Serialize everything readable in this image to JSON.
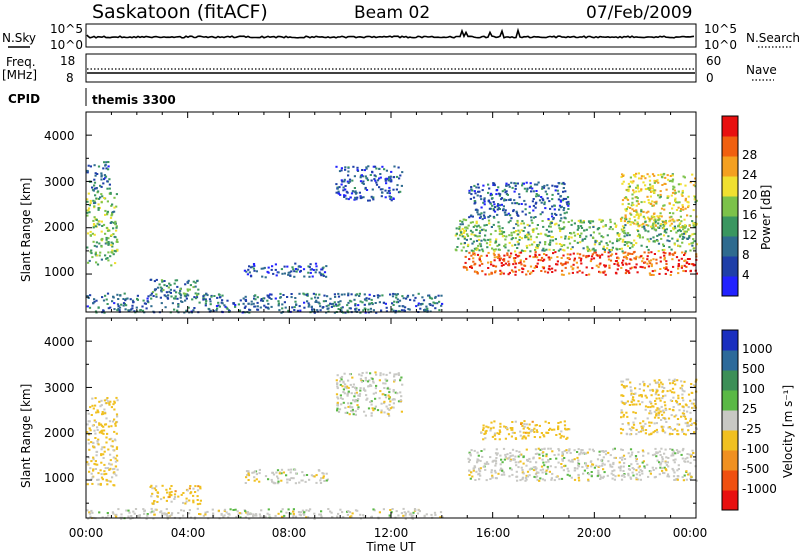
{
  "header": {
    "station": "Saskatoon (fitACF)",
    "beam": "Beam 02",
    "date": "07/Feb/2009"
  },
  "top_panels": {
    "nsky_label": "N.Sky",
    "nsky_ticks": [
      "10^5",
      "10^0"
    ],
    "nsearch_label": "N.Search",
    "nsearch_ticks": [
      "10^5",
      "10^0"
    ],
    "freq_label": "Freq.",
    "freq_unit": "[MHz]",
    "freq_ticks": [
      "18",
      "8"
    ],
    "nave_label": "Nave",
    "nave_ticks": [
      "60",
      "0"
    ],
    "cpid_label": "CPID",
    "cpid_value": "themis 3300"
  },
  "axes": {
    "ylabel": "Slant Range [km]",
    "y_ticks": [
      "1000",
      "2000",
      "3000",
      "4000"
    ],
    "x_ticks": [
      "00:00",
      "04:00",
      "08:00",
      "12:00",
      "16:00",
      "20:00",
      "00:00"
    ],
    "xlabel": "Time UT"
  },
  "colorbars": {
    "power_label": "Power [dB]",
    "power_ticks": [
      "4",
      "8",
      "12",
      "16",
      "20",
      "24",
      "28"
    ],
    "velocity_label": "Velocity [m s⁻¹]",
    "velocity_ticks": [
      "1000",
      "500",
      "100",
      "25",
      "-25",
      "-100",
      "-500",
      "-1000"
    ]
  },
  "colors": {
    "power_scale": [
      "#2222ff",
      "#1f3fa8",
      "#2f6b8f",
      "#3a9660",
      "#7cc24a",
      "#f0e030",
      "#f4a020",
      "#f06010",
      "#e81010"
    ],
    "velocity_scale": [
      "#1a2fbf",
      "#2d6a9a",
      "#3c8f57",
      "#5ab845",
      "#c8c8c4",
      "#f0c020",
      "#f09020",
      "#f05010",
      "#e81010"
    ]
  },
  "chart_data": [
    {
      "type": "heatmap",
      "title": "Power",
      "xlabel": "Time UT",
      "ylabel": "Slant Range [km]",
      "xlim": [
        0,
        24
      ],
      "ylim": [
        180,
        4500
      ],
      "colorbar_range": [
        0,
        30
      ],
      "scatter_regions": [
        {
          "t": [
            0.0,
            1.2
          ],
          "range": [
            1200,
            2800
          ],
          "value": 14
        },
        {
          "t": [
            0.0,
            0.9
          ],
          "range": [
            2800,
            3450
          ],
          "value": 8
        },
        {
          "t": [
            2.5,
            4.5
          ],
          "range": [
            500,
            900
          ],
          "value": 10
        },
        {
          "t": [
            6.2,
            9.5
          ],
          "range": [
            950,
            1250
          ],
          "value": 6
        },
        {
          "t": [
            9.8,
            12.4
          ],
          "range": [
            2600,
            3350
          ],
          "value": 6
        },
        {
          "t": [
            0.0,
            14.0
          ],
          "range": [
            180,
            600
          ],
          "value": 8
        },
        {
          "t": [
            14.8,
            24.0
          ],
          "range": [
            1000,
            1500
          ],
          "value": 26
        },
        {
          "t": [
            14.5,
            24.0
          ],
          "range": [
            1500,
            2200
          ],
          "value": 14
        },
        {
          "t": [
            15.0,
            19.0
          ],
          "range": [
            2200,
            3000
          ],
          "value": 7
        },
        {
          "t": [
            21.0,
            24.0
          ],
          "range": [
            2000,
            3200
          ],
          "value": 18
        }
      ]
    },
    {
      "type": "heatmap",
      "title": "Velocity",
      "xlabel": "Time UT",
      "ylabel": "Slant Range [km]",
      "xlim": [
        0,
        24
      ],
      "ylim": [
        180,
        4500
      ],
      "colorbar_range": [
        -1000,
        1000
      ],
      "scatter_regions": [
        {
          "t": [
            0.0,
            1.2
          ],
          "range": [
            900,
            2800
          ],
          "value": -150
        },
        {
          "t": [
            2.5,
            4.5
          ],
          "range": [
            500,
            900
          ],
          "value": -200
        },
        {
          "t": [
            6.2,
            9.5
          ],
          "range": [
            950,
            1250
          ],
          "value": 0
        },
        {
          "t": [
            9.8,
            12.4
          ],
          "range": [
            2400,
            3350
          ],
          "value": 0
        },
        {
          "t": [
            0.0,
            14.0
          ],
          "range": [
            180,
            400
          ],
          "value": 0
        },
        {
          "t": [
            15.0,
            24.0
          ],
          "range": [
            1000,
            1700
          ],
          "value": 0
        },
        {
          "t": [
            15.5,
            19.0
          ],
          "range": [
            1900,
            2300
          ],
          "value": -200
        },
        {
          "t": [
            21.0,
            24.0
          ],
          "range": [
            2000,
            3200
          ],
          "value": -150
        }
      ]
    }
  ]
}
